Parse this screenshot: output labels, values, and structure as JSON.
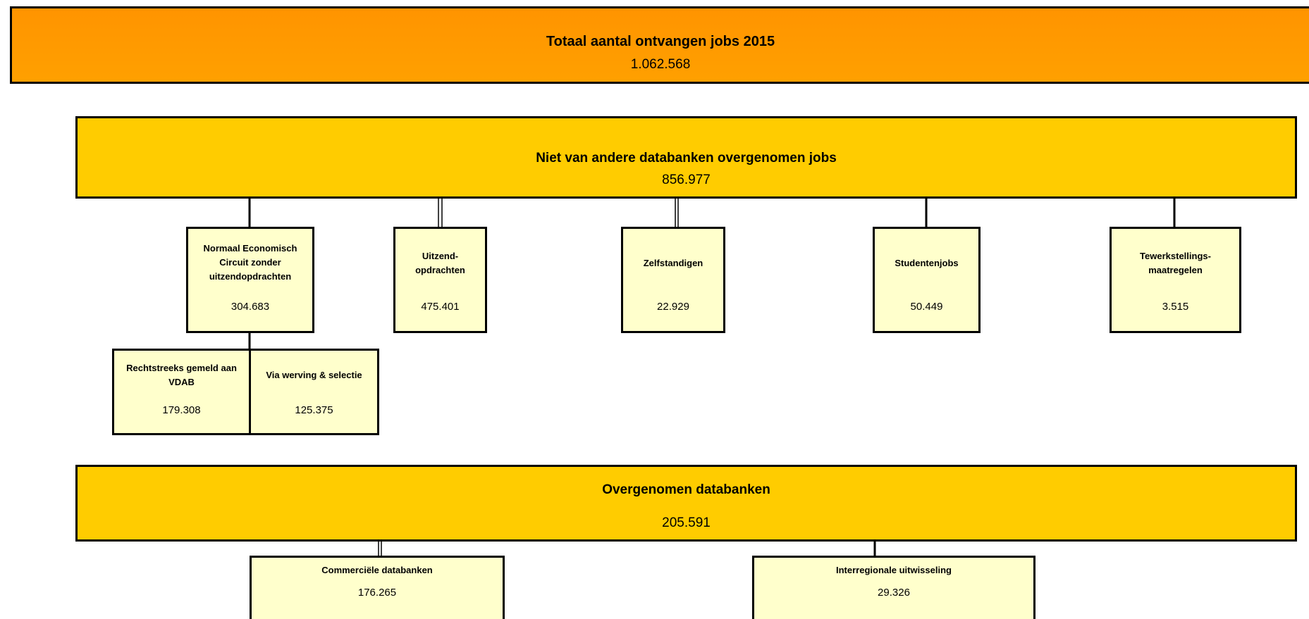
{
  "header": {
    "title": "Totaal aantal ontvangen jobs 2015",
    "value": "1.062.568"
  },
  "groups": [
    {
      "title": "Niet van andere databanken overgenomen jobs",
      "value": "856.977",
      "children": [
        {
          "label": "Normaal Economisch Circuit zonder uitzendopdrachten",
          "value": "304.683",
          "children": [
            {
              "label": "Rechtstreeks gemeld aan VDAB",
              "value": "179.308"
            },
            {
              "label": "Via werving & selectie",
              "value": "125.375"
            }
          ]
        },
        {
          "label": "Uitzend-opdrachten",
          "value": "475.401"
        },
        {
          "label": "Zelfstandigen",
          "value": "22.929"
        },
        {
          "label": "Studentenjobs",
          "value": "50.449"
        },
        {
          "label": "Tewerkstellings-maatregelen",
          "value": "3.515"
        }
      ]
    },
    {
      "title": "Overgenomen databanken",
      "value": "205.591",
      "children": [
        {
          "label": "Commerciële databanken",
          "value": "176.265"
        },
        {
          "label": "Interregionale uitwisseling",
          "value": "29.326"
        }
      ]
    }
  ]
}
